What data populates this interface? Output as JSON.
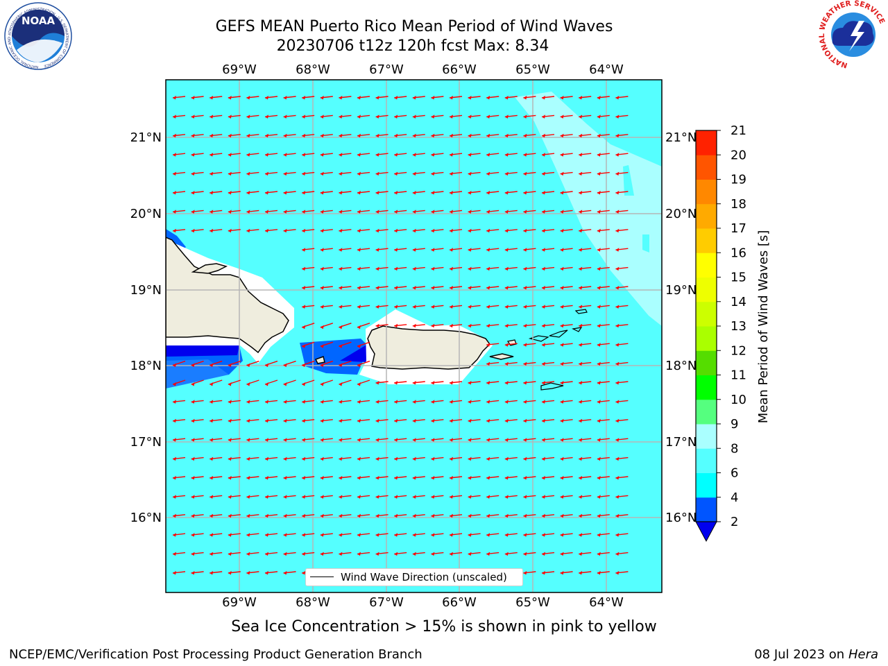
{
  "title": {
    "line1": "GEFS MEAN Puerto Rico Mean Period of Wind Waves",
    "line2": "20230706 t12z 120h fcst   Max: 8.34"
  },
  "map": {
    "lon_labels": [
      "69°W",
      "68°W",
      "67°W",
      "66°W",
      "65°W",
      "64°W"
    ],
    "lat_labels": [
      "21°N",
      "20°N",
      "19°N",
      "18°N",
      "17°N",
      "16°N"
    ],
    "ocean_color": "#55ffff",
    "land_color": "#efedde",
    "arrow_color": "#ff0000",
    "legend_label": "Wind Wave Direction (unscaled)"
  },
  "colorbar": {
    "label": "Mean Period of Wind Waves [s]",
    "ticks": [
      "2",
      "4",
      "6",
      "8",
      "9",
      "10",
      "11",
      "12",
      "13",
      "14",
      "15",
      "16",
      "17",
      "18",
      "19",
      "20",
      "21"
    ],
    "colors": [
      "#0055ff",
      "#00ffff",
      "#55ffff",
      "#aaffff",
      "#55ff7f",
      "#00ff00",
      "#55dd00",
      "#aaff00",
      "#ccff00",
      "#eeff00",
      "#ffff00",
      "#ffcc00",
      "#ffaa00",
      "#ff8800",
      "#ff5500",
      "#ff2200"
    ],
    "under_color": "#0000ee"
  },
  "notes": {
    "sea_ice": "Sea Ice Concentration > 15% is shown in pink to yellow"
  },
  "footer": {
    "left": "NCEP/EMC/Verification Post Processing Product Generation Branch",
    "right_date": "08 Jul 2023 on ",
    "right_machine": "Hera"
  },
  "logos": {
    "noaa_text": "NOAA",
    "noaa_ring": "NATIONAL OCEANIC AND ATMOSPHERIC ADMINISTRATION · U.S. DEPARTMENT OF COMMERCE",
    "nws_ring": "NATIONAL WEATHER SERVICE"
  }
}
